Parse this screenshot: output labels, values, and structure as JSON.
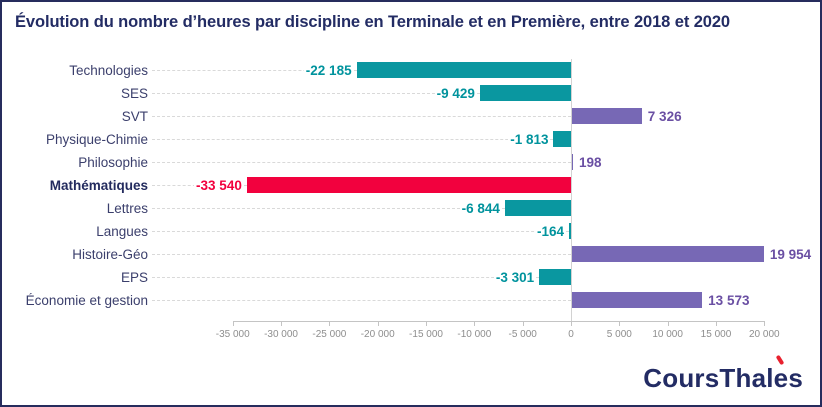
{
  "title": "Évolution du nombre d’heures par discipline en Terminale et en Première, entre 2018 et 2020",
  "chart_data": {
    "type": "bar",
    "orientation": "horizontal",
    "title": "Évolution du nombre d’heures par discipline en Terminale et en Première, entre 2018 et 2020",
    "categories": [
      "Technologies",
      "SES",
      "SVT",
      "Physique-Chimie",
      "Philosophie",
      "Mathématiques",
      "Lettres",
      "Langues",
      "Histoire-Géo",
      "EPS",
      "Économie et gestion"
    ],
    "values": [
      -22185,
      -9429,
      7326,
      -1813,
      198,
      -33540,
      -6844,
      -164,
      19954,
      -3301,
      13573
    ],
    "value_labels": [
      "-22 185",
      "-9 429",
      "7 326",
      "-1 813",
      "198",
      "-33 540",
      "-6 844",
      "-164",
      "19 954",
      "-3 301",
      "13 573"
    ],
    "emphasized_category": "Mathématiques",
    "xlim": [
      -35000,
      20000
    ],
    "x_ticks": [
      -35000,
      -30000,
      -25000,
      -20000,
      -15000,
      -10000,
      -5000,
      0,
      5000,
      10000,
      15000,
      20000
    ],
    "x_tick_labels": [
      "-35 000",
      "-30 000",
      "-25 000",
      "-20 000",
      "-15 000",
      "-10 000",
      "-5 000",
      "0",
      "5 000",
      "10 000",
      "15 000",
      "20 000"
    ],
    "legend": "none",
    "grid": "dotted leader lines per category, vertical zero line",
    "colors": {
      "negative_bar": "#0A97A0",
      "positive_bar": "#7768B5",
      "highlight_bar": "#F2013E",
      "negative_value_text": "#00939D",
      "positive_value_text": "#6A4FA3",
      "highlight_value_text": "#F2013E"
    }
  },
  "logo": {
    "text": "CoursThalès",
    "text_before_accent": "CoursThal",
    "accented_letter": "e",
    "text_after_accent": "s",
    "accent_color": "#E8212E",
    "text_color": "#232C64"
  }
}
